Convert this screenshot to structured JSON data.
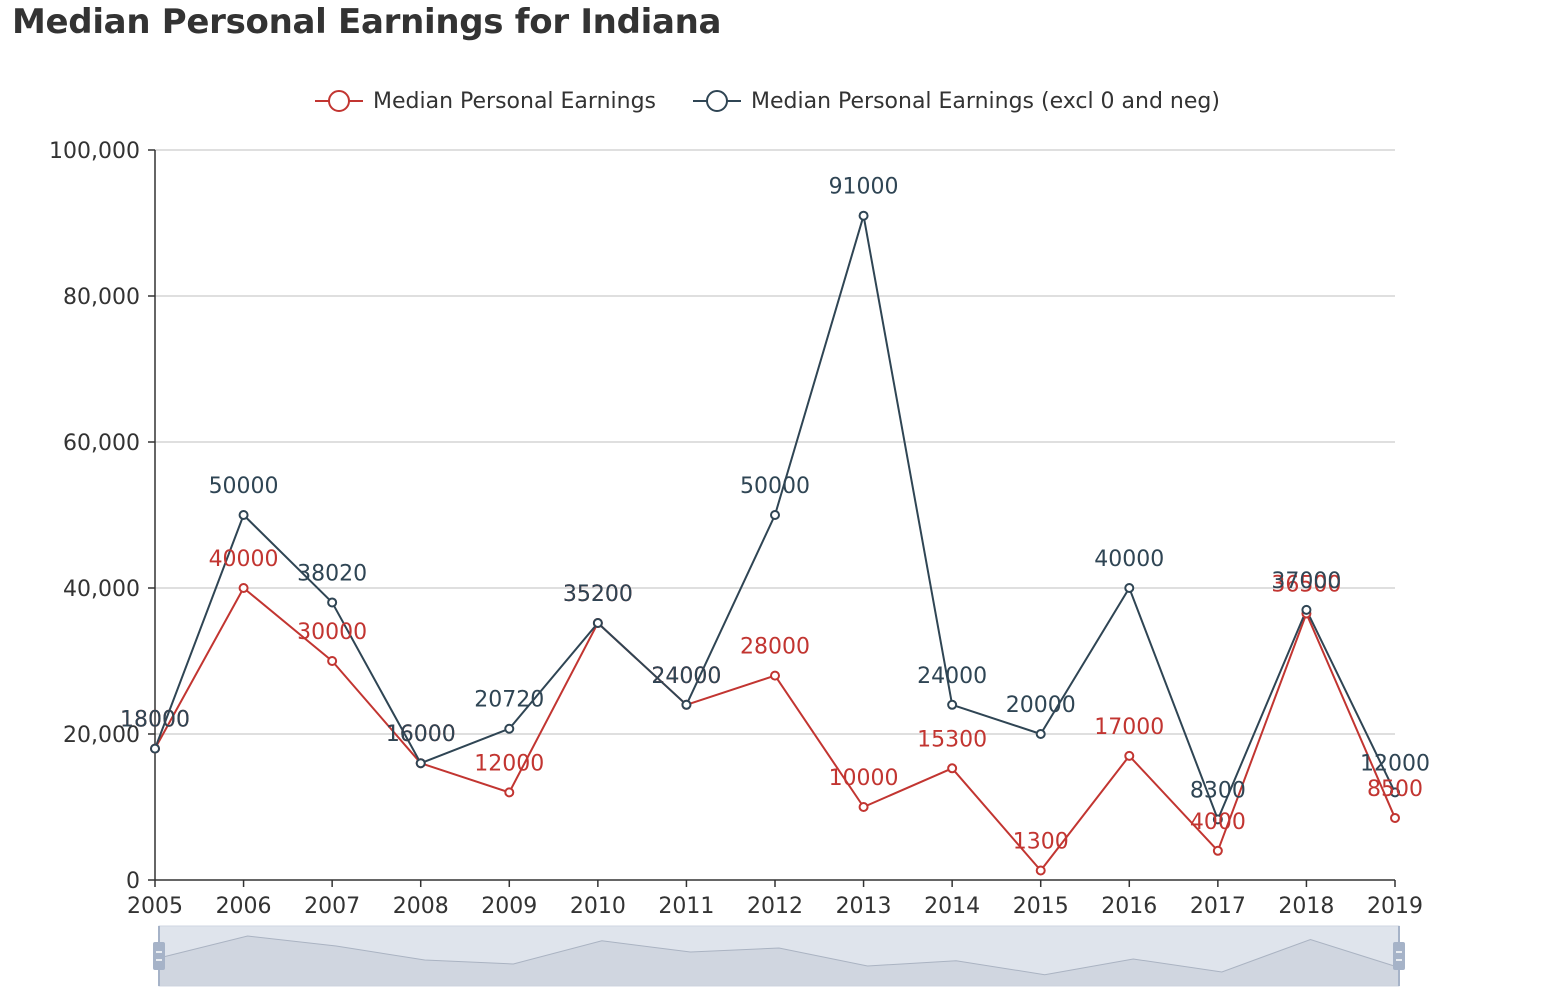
{
  "chart_data": {
    "type": "line",
    "title": "Median Personal Earnings for Indiana",
    "x": [
      "2005",
      "2006",
      "2007",
      "2008",
      "2009",
      "2010",
      "2011",
      "2012",
      "2013",
      "2014",
      "2015",
      "2016",
      "2017",
      "2018",
      "2019"
    ],
    "ylim": [
      0,
      100000
    ],
    "yticks": [
      0,
      20000,
      40000,
      60000,
      80000,
      100000
    ],
    "ytick_labels": [
      "0",
      "20,000",
      "40,000",
      "60,000",
      "80,000",
      "100,000"
    ],
    "grid": true,
    "legend_position": "top-center",
    "series": [
      {
        "name": "Median Personal Earnings",
        "color": "#c23531",
        "values": [
          18000,
          40000,
          30000,
          16000,
          12000,
          35200,
          24000,
          28000,
          10000,
          15300,
          1300,
          17000,
          4000,
          36500,
          8500
        ]
      },
      {
        "name": "Median Personal Earnings (excl 0 and neg)",
        "color": "#2f4554",
        "values": [
          18000,
          50000,
          38020,
          16000,
          20720,
          35200,
          24000,
          50000,
          91000,
          24000,
          20000,
          40000,
          8300,
          37000,
          12000
        ]
      }
    ],
    "data_zoom": {
      "visible": true,
      "range_percent": [
        0,
        100
      ]
    }
  }
}
